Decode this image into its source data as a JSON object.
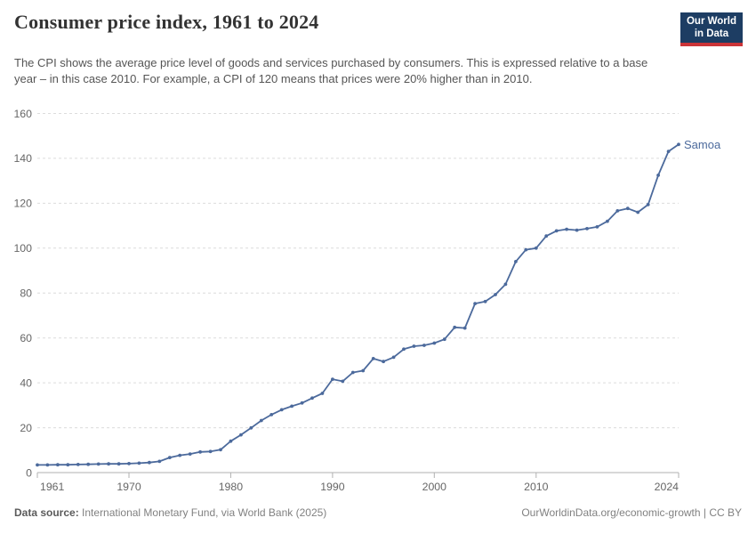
{
  "header": {
    "title": "Consumer price index, 1961 to 2024",
    "subtitle": "The CPI shows the average price level of goods and services purchased by consumers. This is expressed relative to a base year – in this case 2010. For example, a CPI of 120 means that prices were 20% higher than in 2010.",
    "logo": {
      "line1": "Our World",
      "line2": "in Data"
    }
  },
  "footer": {
    "source_label": "Data source:",
    "source_value": "International Monetary Fund, via World Bank (2025)",
    "license": "OurWorldinData.org/economic-growth | CC BY"
  },
  "colors": {
    "line": "#4C6A9C",
    "entity_label": "#4C6A9C",
    "gridline": "#dcdcdc",
    "axis": "#b0b0b0",
    "tick_text": "#666666",
    "logo_bg": "#1d3d63",
    "logo_red": "#cb3438"
  },
  "chart_data": {
    "type": "line",
    "title": "Consumer price index, 1961 to 2024",
    "entity": "Samoa",
    "xlabel": "",
    "ylabel": "",
    "xlim": [
      1961,
      2024
    ],
    "ylim": [
      0,
      160
    ],
    "xticks": [
      1961,
      1970,
      1980,
      1990,
      2000,
      2010,
      2024
    ],
    "yticks": [
      0,
      20,
      40,
      60,
      80,
      100,
      120,
      140,
      160
    ],
    "grid": "horizontal-dashed",
    "legend_position": "end-of-line-label",
    "x": [
      1961,
      1962,
      1963,
      1964,
      1965,
      1966,
      1967,
      1968,
      1969,
      1970,
      1971,
      1972,
      1973,
      1974,
      1975,
      1976,
      1977,
      1978,
      1979,
      1980,
      1981,
      1982,
      1983,
      1984,
      1985,
      1986,
      1987,
      1988,
      1989,
      1990,
      1991,
      1992,
      1993,
      1994,
      1995,
      1996,
      1997,
      1998,
      1999,
      2000,
      2001,
      2002,
      2003,
      2004,
      2005,
      2006,
      2007,
      2008,
      2009,
      2010,
      2011,
      2012,
      2013,
      2014,
      2015,
      2016,
      2017,
      2018,
      2019,
      2020,
      2021,
      2022,
      2023,
      2024
    ],
    "series": [
      {
        "name": "Samoa",
        "values": [
          3.4,
          3.4,
          3.5,
          3.5,
          3.6,
          3.7,
          3.8,
          3.9,
          3.9,
          4.0,
          4.2,
          4.5,
          5.0,
          6.7,
          7.7,
          8.3,
          9.2,
          9.4,
          10.2,
          14.0,
          16.8,
          19.9,
          23.2,
          25.8,
          28.0,
          29.6,
          31.0,
          33.2,
          35.3,
          41.6,
          40.7,
          44.6,
          45.4,
          50.8,
          49.5,
          51.4,
          55.0,
          56.3,
          56.7,
          57.7,
          59.4,
          64.7,
          64.4,
          75.3,
          76.2,
          79.3,
          83.9,
          94.0,
          99.3,
          100.0,
          105.4,
          107.7,
          108.4,
          108.0,
          108.7,
          109.5,
          112.0,
          116.6,
          117.7,
          116.0,
          119.4,
          132.5,
          143.1,
          146.2
        ]
      }
    ]
  }
}
